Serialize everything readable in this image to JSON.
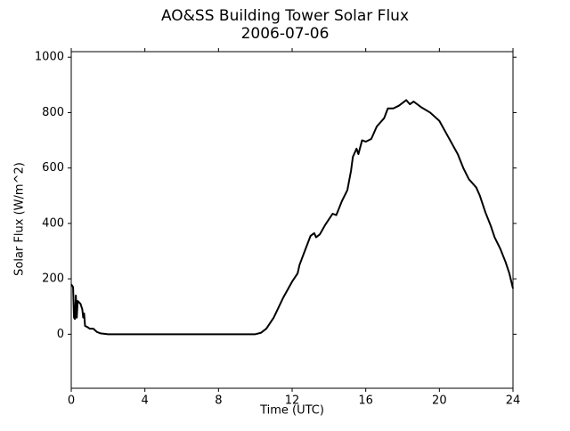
{
  "chart_data": {
    "type": "line",
    "title": "AO&SS Building Tower Solar Flux",
    "subtitle": "2006-07-06",
    "x_label": "Time (UTC)",
    "y_label": "Solar Flux (W/m^2)",
    "x": [
      0,
      0.1,
      0.15,
      0.2,
      0.25,
      0.3,
      0.35,
      0.5,
      0.6,
      0.65,
      0.7,
      0.75,
      0.9,
      1.0,
      1.2,
      1.4,
      1.6,
      2,
      4,
      8,
      10,
      10.3,
      10.6,
      11,
      11.5,
      12,
      12.3,
      12.4,
      12.8,
      13.0,
      13.2,
      13.3,
      13.5,
      13.8,
      14.2,
      14.4,
      14.7,
      15.0,
      15.2,
      15.3,
      15.5,
      15.6,
      15.8,
      16.0,
      16.3,
      16.6,
      17.0,
      17.2,
      17.5,
      17.8,
      18.2,
      18.4,
      18.6,
      19.0,
      19.5,
      20.0,
      20.5,
      21.0,
      21.3,
      21.6,
      22.0,
      22.2,
      22.5,
      22.8,
      23.0,
      23.3,
      23.6,
      23.8,
      24
    ],
    "series": [
      {
        "name": "Solar Flux",
        "color": "#000000",
        "values": [
          180,
          170,
          60,
          55,
          140,
          60,
          120,
          110,
          90,
          60,
          75,
          30,
          25,
          20,
          20,
          8,
          3,
          0,
          0,
          0,
          0,
          5,
          20,
          60,
          130,
          190,
          220,
          250,
          320,
          355,
          365,
          350,
          360,
          395,
          435,
          430,
          480,
          520,
          590,
          640,
          670,
          650,
          700,
          695,
          705,
          750,
          780,
          815,
          815,
          825,
          845,
          830,
          840,
          820,
          800,
          770,
          710,
          650,
          600,
          560,
          530,
          500,
          440,
          390,
          350,
          310,
          260,
          220,
          165
        ]
      }
    ],
    "xlim": [
      0,
      24
    ],
    "xticks": [
      0,
      4,
      8,
      12,
      16,
      20,
      24
    ],
    "ylim": [
      -195,
      1020
    ],
    "yticks": [
      0,
      200,
      400,
      600,
      800,
      1000
    ]
  }
}
